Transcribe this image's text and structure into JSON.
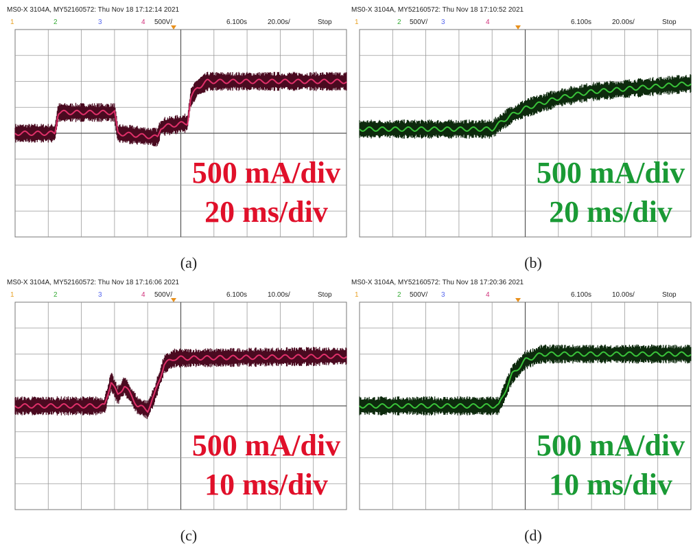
{
  "panels": [
    {
      "header": "MS0-X 3104A, MY52160572: Thu Nov 18 17:12:14 2021",
      "channels": [
        "1",
        "2",
        "3",
        "4"
      ],
      "scale": "500V/",
      "offset": "6.100s",
      "timebase": "20.00s/",
      "status": "Stop",
      "overlay": [
        "500 mA/div",
        "20 ms/div"
      ],
      "caption": "(a)"
    },
    {
      "header": "MS0-X 3104A, MY52160572: Thu Nov 18 17:10:52 2021",
      "channels": [
        "1",
        "2",
        "3",
        "4"
      ],
      "scale": "500V/",
      "offset": "6.100s",
      "timebase": "20.00s/",
      "status": "Stop",
      "overlay": [
        "500 mA/div",
        "20 ms/div"
      ],
      "caption": "(b)"
    },
    {
      "header": "MS0-X 3104A, MY52160572: Thu Nov 18 17:16:06 2021",
      "channels": [
        "1",
        "2",
        "3",
        "4"
      ],
      "scale": "500V/",
      "offset": "6.100s",
      "timebase": "10.00s/",
      "status": "Stop",
      "overlay": [
        "500 mA/div",
        "10 ms/div"
      ],
      "caption": "(c)"
    },
    {
      "header": "MS0-X 3104A, MY52160572: Thu Nov 18 17:20:36 2021",
      "channels": [
        "1",
        "2",
        "3",
        "4"
      ],
      "scale": "500V/",
      "offset": "6.100s",
      "timebase": "10.00s/",
      "status": "Stop",
      "overlay": [
        "500 mA/div",
        "10 ms/div"
      ],
      "caption": "(d)"
    }
  ]
}
